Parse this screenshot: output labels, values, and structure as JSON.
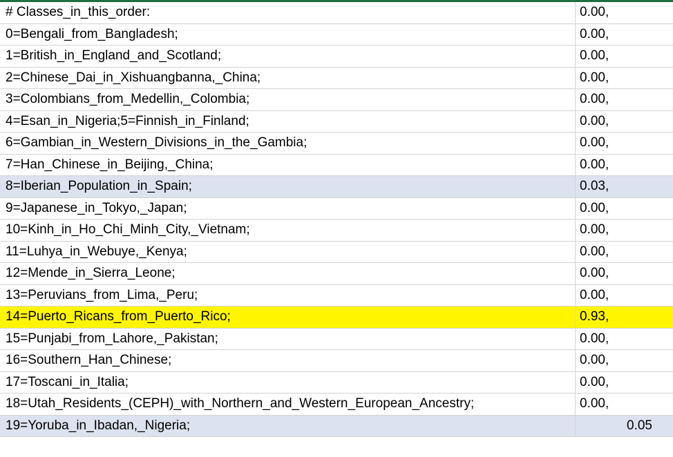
{
  "sheet": {
    "rows": [
      {
        "label": "# Classes_in_this_order:",
        "value": "0.00,"
      },
      {
        "label": "0=Bengali_from_Bangladesh;",
        "value": "0.00,"
      },
      {
        "label": "1=British_in_England_and_Scotland;",
        "value": "0.00,"
      },
      {
        "label": "2=Chinese_Dai_in_Xishuangbanna,_China;",
        "value": "0.00,"
      },
      {
        "label": "3=Colombians_from_Medellin,_Colombia;",
        "value": "0.00,"
      },
      {
        "label": "4=Esan_in_Nigeria;5=Finnish_in_Finland;",
        "value": "0.00,"
      },
      {
        "label": "6=Gambian_in_Western_Divisions_in_the_Gambia;",
        "value": "0.00,"
      },
      {
        "label": "7=Han_Chinese_in_Beijing,_China;",
        "value": "0.00,"
      },
      {
        "label": "8=Iberian_Population_in_Spain;",
        "value": "0.03,"
      },
      {
        "label": "9=Japanese_in_Tokyo,_Japan;",
        "value": "0.00,"
      },
      {
        "label": "10=Kinh_in_Ho_Chi_Minh_City,_Vietnam;",
        "value": "0.00,"
      },
      {
        "label": "11=Luhya_in_Webuye,_Kenya;",
        "value": "0.00,"
      },
      {
        "label": "12=Mende_in_Sierra_Leone;",
        "value": "0.00,"
      },
      {
        "label": "13=Peruvians_from_Lima,_Peru;",
        "value": "0.00,"
      },
      {
        "label": "14=Puerto_Ricans_from_Puerto_Rico;",
        "value": "0.93,"
      },
      {
        "label": "15=Punjabi_from_Lahore,_Pakistan;",
        "value": "0.00,"
      },
      {
        "label": "16=Southern_Han_Chinese;",
        "value": "0.00,"
      },
      {
        "label": "17=Toscani_in_Italia;",
        "value": "0.00,"
      },
      {
        "label": "18=Utah_Residents_(CEPH)_with_Northern_and_Western_European_Ancestry;",
        "value": "0.00,"
      },
      {
        "label": "19=Yoruba_in_Ibadan,_Nigeria;",
        "value": "0.05"
      }
    ],
    "colors": {
      "header_bar": "#1e6e42",
      "alt_row": "#dde2f0",
      "highlight_row": "#fff500",
      "gridline": "#d4d4d4"
    }
  }
}
